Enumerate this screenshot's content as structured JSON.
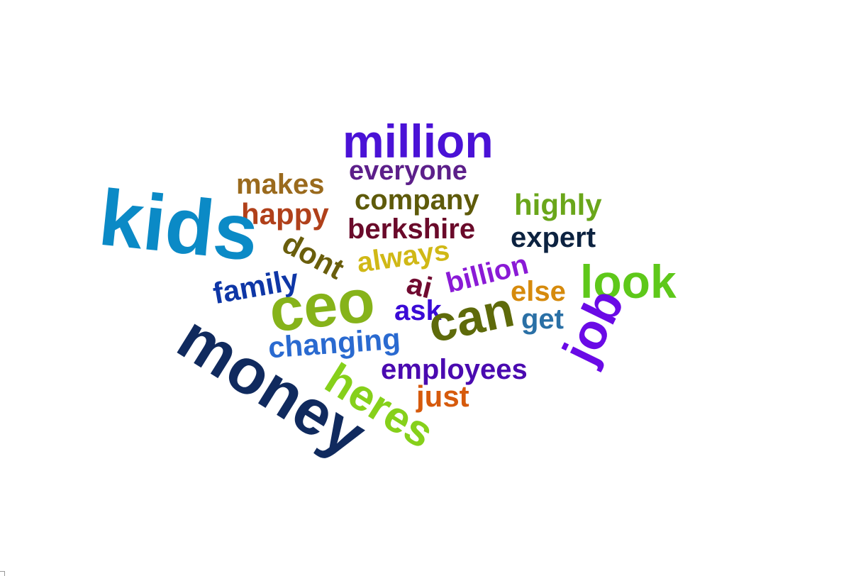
{
  "words": [
    {
      "text": "million",
      "color": "#4a12d6"
    },
    {
      "text": "everyone",
      "color": "#5c1f8a"
    },
    {
      "text": "makes",
      "color": "#9a6a1d"
    },
    {
      "text": "company",
      "color": "#5e5a0a"
    },
    {
      "text": "highly",
      "color": "#6aa61a"
    },
    {
      "text": "happy",
      "color": "#b0401a"
    },
    {
      "text": "kids",
      "color": "#0b8ac6"
    },
    {
      "text": "berkshire",
      "color": "#6a0a2a"
    },
    {
      "text": "expert",
      "color": "#0c2240"
    },
    {
      "text": "dont",
      "color": "#6a5e0c"
    },
    {
      "text": "always",
      "color": "#d0b816"
    },
    {
      "text": "look",
      "color": "#5ec81a"
    },
    {
      "text": "billion",
      "color": "#8a1ad6"
    },
    {
      "text": "ai",
      "color": "#700a30"
    },
    {
      "text": "family",
      "color": "#0e36a6"
    },
    {
      "text": "else",
      "color": "#d68a0c"
    },
    {
      "text": "ceo",
      "color": "#86b31a"
    },
    {
      "text": "ask",
      "color": "#3a0ad6"
    },
    {
      "text": "can",
      "color": "#5e6a0a"
    },
    {
      "text": "get",
      "color": "#2a70a6"
    },
    {
      "text": "job",
      "color": "#6a0ae6"
    },
    {
      "text": "changing",
      "color": "#2a6ad0"
    },
    {
      "text": "money",
      "color": "#102a5e"
    },
    {
      "text": "employees",
      "color": "#4a0ab0"
    },
    {
      "text": "heres",
      "color": "#86d01a"
    },
    {
      "text": "just",
      "color": "#d65a0c"
    }
  ]
}
